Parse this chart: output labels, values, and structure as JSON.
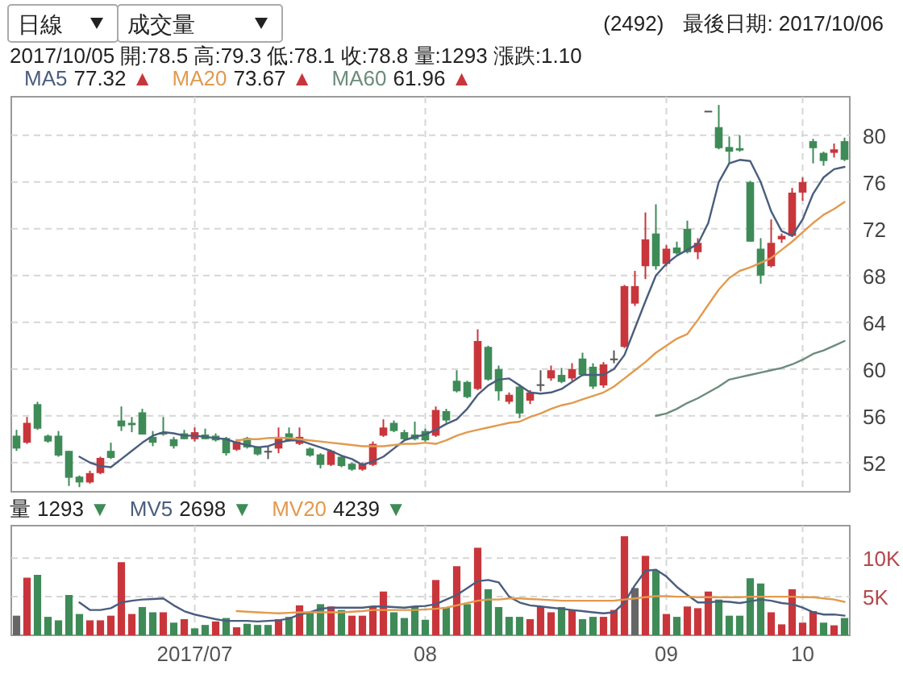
{
  "chart_data": [
    {
      "type": "candlestick",
      "title": "(2492)",
      "subtitle": "最後日期: 2017/10/06",
      "annotations": [
        "日線",
        "成交量",
        "2017/10/05 開:78.5 高:79.3 低:78.1 收:78.8 量:1293 漲跌:1.10",
        "77.32 ▲",
        "73.67 ▲",
        "61.96 ▲"
      ],
      "categories": [
        null,
        null,
        null,
        null,
        null,
        null,
        null,
        null,
        null,
        null,
        null,
        null,
        null,
        null,
        null,
        null,
        null,
        "2017/07",
        null,
        null,
        null,
        null,
        null,
        null,
        null,
        null,
        null,
        null,
        null,
        null,
        null,
        null,
        null,
        null,
        null,
        null,
        null,
        null,
        null,
        "08",
        null,
        null,
        null,
        null,
        null,
        null,
        null,
        null,
        null,
        null,
        null,
        null,
        null,
        null,
        null,
        null,
        null,
        null,
        null,
        null,
        null,
        null,
        "09",
        null,
        null,
        null,
        null,
        null,
        null,
        null,
        null,
        null,
        null,
        null,
        null,
        "10",
        null,
        null,
        null,
        null
      ],
      "ohlc": [
        [
          54.3,
          54.8,
          53.0,
          53.2
        ],
        [
          53.7,
          55.9,
          53.6,
          55.4
        ],
        [
          57.0,
          57.2,
          54.8,
          54.9
        ],
        [
          54.3,
          54.4,
          53.7,
          53.8
        ],
        [
          54.3,
          54.7,
          52.5,
          52.6
        ],
        [
          53.0,
          53.0,
          50.0,
          50.7
        ],
        [
          50.8,
          50.9,
          49.9,
          50.3
        ],
        [
          50.3,
          51.3,
          50.2,
          51.1
        ],
        [
          51.1,
          52.5,
          51.0,
          52.4
        ],
        [
          53.0,
          53.7,
          52.3,
          52.4
        ],
        [
          55.6,
          56.8,
          54.7,
          55.1
        ],
        [
          55.4,
          55.9,
          54.6,
          55.2
        ],
        [
          56.3,
          56.6,
          54.4,
          54.4
        ],
        [
          54.2,
          54.7,
          53.4,
          53.7
        ],
        [
          54.6,
          55.9,
          54.3,
          54.4
        ],
        [
          54.0,
          54.2,
          53.2,
          53.4
        ],
        [
          54.5,
          54.8,
          54.0,
          54.0
        ],
        [
          54.0,
          55.0,
          53.8,
          54.6
        ],
        [
          54.4,
          54.9,
          54.0,
          54.0
        ],
        [
          54.3,
          54.5,
          53.8,
          53.9
        ],
        [
          54.1,
          54.2,
          52.6,
          52.8
        ],
        [
          53.1,
          54.0,
          53.0,
          53.8
        ],
        [
          54.1,
          54.2,
          53.2,
          53.3
        ],
        [
          53.3,
          53.4,
          52.6,
          52.7
        ],
        [
          53.0,
          53.4,
          52.3,
          53.0
        ],
        [
          53.2,
          55.0,
          52.8,
          54.2
        ],
        [
          54.5,
          55.0,
          53.8,
          53.9
        ],
        [
          53.6,
          55.0,
          53.5,
          54.2
        ],
        [
          53.2,
          53.3,
          52.5,
          52.6
        ],
        [
          52.7,
          52.8,
          51.5,
          51.8
        ],
        [
          51.8,
          53.1,
          51.7,
          53.0
        ],
        [
          52.5,
          52.6,
          51.6,
          51.7
        ],
        [
          51.9,
          52.0,
          51.3,
          51.4
        ],
        [
          51.4,
          52.0,
          51.3,
          51.9
        ],
        [
          51.8,
          53.8,
          51.7,
          53.6
        ],
        [
          54.3,
          55.7,
          54.2,
          55.0
        ],
        [
          55.4,
          55.6,
          54.6,
          54.7
        ],
        [
          54.6,
          54.8,
          53.9,
          54.0
        ],
        [
          54.4,
          55.5,
          53.9,
          54.0
        ],
        [
          54.7,
          54.9,
          53.8,
          53.9
        ],
        [
          54.3,
          56.8,
          54.2,
          56.5
        ],
        [
          56.4,
          56.6,
          55.4,
          55.6
        ],
        [
          59.0,
          59.9,
          58.0,
          58.1
        ],
        [
          58.9,
          59.0,
          57.5,
          57.6
        ],
        [
          58.3,
          63.4,
          58.2,
          62.4
        ],
        [
          61.9,
          62.0,
          59.0,
          59.1
        ],
        [
          60.0,
          60.3,
          57.3,
          58.1
        ],
        [
          57.2,
          58.0,
          57.0,
          57.8
        ],
        [
          58.5,
          58.7,
          55.8,
          56.2
        ],
        [
          57.3,
          58.2,
          57.0,
          58.0
        ],
        [
          58.7,
          59.9,
          58.1,
          58.7
        ],
        [
          59.2,
          60.3,
          59.0,
          59.9
        ],
        [
          59.5,
          60.1,
          58.8,
          58.9
        ],
        [
          59.2,
          60.5,
          59.0,
          60.0
        ],
        [
          60.9,
          61.4,
          59.4,
          59.5
        ],
        [
          60.2,
          60.5,
          58.3,
          58.5
        ],
        [
          58.6,
          60.6,
          58.4,
          60.4
        ],
        [
          60.9,
          61.6,
          60.5,
          60.9
        ],
        [
          61.9,
          67.2,
          61.8,
          67.1
        ],
        [
          65.6,
          68.4,
          65.4,
          67.1
        ],
        [
          68.8,
          73.4,
          67.7,
          71.1
        ],
        [
          71.6,
          74.1,
          68.5,
          68.8
        ],
        [
          69.0,
          70.6,
          68.8,
          70.3
        ],
        [
          70.4,
          70.9,
          69.8,
          69.9
        ],
        [
          72.0,
          72.7,
          69.9,
          70.0
        ],
        [
          70.0,
          71.2,
          69.4,
          70.8
        ],
        [
          82.1,
          82.1,
          82.1,
          82.1
        ],
        [
          80.7,
          82.6,
          78.8,
          78.9
        ],
        [
          79.0,
          79.9,
          77.6,
          78.6
        ],
        [
          78.9,
          80.0,
          78.6,
          78.7
        ],
        [
          76.0,
          76.1,
          70.9,
          70.9
        ],
        [
          70.3,
          71.2,
          67.3,
          68.0
        ],
        [
          68.8,
          72.8,
          68.7,
          70.8
        ],
        [
          71.1,
          71.6,
          70.8,
          71.4
        ],
        [
          71.4,
          75.5,
          71.3,
          75.1
        ],
        [
          75.1,
          76.4,
          74.4,
          76.0
        ],
        [
          79.5,
          79.7,
          77.6,
          78.9
        ],
        [
          78.5,
          78.6,
          77.4,
          77.8
        ],
        [
          78.5,
          79.3,
          78.1,
          78.8
        ],
        [
          79.5,
          79.8,
          77.8,
          77.9
        ]
      ],
      "colors": [
        "#3e8b58",
        "#c8363b",
        "#3e8b58",
        "#3e8b58",
        "#3e8b58",
        "#3e8b58",
        "#3e8b58",
        "#c8363b",
        "#c8363b",
        "#3e8b58",
        "#3e8b58",
        "#3e8b58",
        "#3e8b58",
        "#3e8b58",
        "#3e8b58",
        "#3e8b58",
        "#3e8b58",
        "#c8363b",
        "#3e8b58",
        "#3e8b58",
        "#3e8b58",
        "#c8363b",
        "#3e8b58",
        "#3e8b58",
        "#555555",
        "#c8363b",
        "#3e8b58",
        "#c8363b",
        "#3e8b58",
        "#3e8b58",
        "#c8363b",
        "#3e8b58",
        "#3e8b58",
        "#c8363b",
        "#c8363b",
        "#c8363b",
        "#3e8b58",
        "#3e8b58",
        "#3e8b58",
        "#3e8b58",
        "#c8363b",
        "#3e8b58",
        "#3e8b58",
        "#3e8b58",
        "#c8363b",
        "#3e8b58",
        "#3e8b58",
        "#c8363b",
        "#3e8b58",
        "#c8363b",
        "#555555",
        "#c8363b",
        "#3e8b58",
        "#c8363b",
        "#3e8b58",
        "#3e8b58",
        "#c8363b",
        "#555555",
        "#c8363b",
        "#c8363b",
        "#c8363b",
        "#3e8b58",
        "#c8363b",
        "#3e8b58",
        "#3e8b58",
        "#c8363b",
        "#555555",
        "#3e8b58",
        "#3e8b58",
        "#3e8b58",
        "#3e8b58",
        "#3e8b58",
        "#c8363b",
        "#c8363b",
        "#c8363b",
        "#c8363b",
        "#3e8b58",
        "#3e8b58",
        "#c8363b",
        "#3e8b58"
      ],
      "series": [
        {
          "name": "MA5",
          "type": "line",
          "color": "#4a5d7e",
          "values": [
            null,
            null,
            null,
            null,
            null,
            null,
            52.5,
            52.0,
            51.7,
            51.6,
            52.3,
            53.0,
            53.7,
            54.3,
            54.6,
            54.5,
            54.3,
            54.3,
            54.2,
            54.1,
            54.0,
            53.7,
            53.5,
            53.3,
            53.4,
            53.7,
            53.9,
            53.9,
            53.6,
            53.3,
            53.0,
            52.6,
            52.3,
            51.8,
            52.1,
            52.5,
            53.2,
            53.9,
            54.2,
            54.4,
            54.8,
            55.3,
            55.7,
            56.6,
            57.8,
            58.6,
            59.1,
            59.2,
            58.6,
            58.0,
            57.9,
            58.0,
            58.3,
            58.9,
            59.5,
            59.5,
            59.5,
            60.0,
            61.2,
            63.5,
            65.8,
            68.0,
            69.0,
            69.7,
            70.2,
            70.7,
            72.5,
            76.0,
            77.6,
            77.9,
            77.8,
            76.0,
            73.5,
            71.8,
            71.4,
            72.8,
            75.0,
            76.4,
            77.1,
            77.3
          ]
        },
        {
          "name": "MA20",
          "type": "line",
          "color": "#e29a4e",
          "values": [
            null,
            null,
            null,
            null,
            null,
            null,
            null,
            null,
            null,
            null,
            null,
            null,
            null,
            null,
            null,
            null,
            null,
            null,
            null,
            null,
            null,
            53.9,
            54.0,
            54.0,
            54.1,
            54.1,
            54.1,
            54.0,
            53.9,
            53.8,
            53.7,
            53.6,
            53.5,
            53.4,
            53.4,
            53.4,
            53.5,
            53.6,
            53.6,
            53.7,
            53.6,
            53.9,
            54.3,
            54.6,
            54.8,
            55.0,
            55.2,
            55.4,
            55.5,
            55.9,
            56.2,
            56.6,
            56.9,
            57.1,
            57.4,
            57.7,
            58.0,
            58.5,
            59.2,
            59.9,
            60.6,
            61.4,
            62.0,
            62.6,
            63.0,
            64.2,
            65.5,
            66.8,
            67.8,
            68.4,
            68.7,
            69.1,
            69.5,
            70.2,
            70.9,
            71.7,
            72.5,
            73.2,
            73.7,
            74.3
          ]
        },
        {
          "name": "MA60",
          "type": "line",
          "color": "#6b8c7c",
          "values": [
            null,
            null,
            null,
            null,
            null,
            null,
            null,
            null,
            null,
            null,
            null,
            null,
            null,
            null,
            null,
            null,
            null,
            null,
            null,
            null,
            null,
            null,
            null,
            null,
            null,
            null,
            null,
            null,
            null,
            null,
            null,
            null,
            null,
            null,
            null,
            null,
            null,
            null,
            null,
            null,
            null,
            null,
            null,
            null,
            null,
            null,
            null,
            null,
            null,
            null,
            null,
            null,
            null,
            null,
            null,
            null,
            null,
            null,
            null,
            null,
            null,
            56.0,
            56.2,
            56.6,
            57.1,
            57.5,
            58.0,
            58.5,
            59.1,
            59.3,
            59.5,
            59.7,
            59.9,
            60.1,
            60.4,
            60.8,
            61.3,
            61.6,
            62.0,
            62.4
          ]
        }
      ],
      "ylim": [
        49.5,
        83.3
      ],
      "yticks": [
        52,
        56,
        60,
        64,
        68,
        72,
        76,
        80
      ],
      "grid": true,
      "legend": "top left",
      "tick_labels": "y"
    },
    {
      "type": "bar",
      "annotations": [
        "1293 ▼",
        "2698 ▼",
        "4239 ▼"
      ],
      "categories": [
        null,
        null,
        null,
        null,
        null,
        null,
        null,
        null,
        null,
        null,
        null,
        null,
        null,
        null,
        null,
        null,
        null,
        "2017/07",
        null,
        null,
        null,
        null,
        null,
        null,
        null,
        null,
        null,
        null,
        null,
        null,
        null,
        null,
        null,
        null,
        null,
        null,
        null,
        null,
        null,
        "08",
        null,
        null,
        null,
        null,
        null,
        null,
        null,
        null,
        null,
        null,
        null,
        null,
        null,
        null,
        null,
        null,
        null,
        null,
        null,
        null,
        null,
        null,
        "09",
        null,
        null,
        null,
        null,
        null,
        null,
        null,
        null,
        null,
        null,
        null,
        null,
        "10",
        null,
        null,
        null,
        null
      ],
      "series": [
        {
          "name": "量",
          "type": "bar",
          "colors": [
            "#666666",
            "#c8363b",
            "#3e8b58",
            "#3e8b58",
            "#3e8b58",
            "#3e8b58",
            "#3e8b58",
            "#c8363b",
            "#c8363b",
            "#c8363b",
            "#c8363b",
            "#c8363b",
            "#3e8b58",
            "#3e8b58",
            "#c8363b",
            "#3e8b58",
            "#c8363b",
            "#3e8b58",
            "#3e8b58",
            "#c8363b",
            "#3e8b58",
            "#c8363b",
            "#3e8b58",
            "#3e8b58",
            "#3e8b58",
            "#c8363b",
            "#3e8b58",
            "#c8363b",
            "#3e8b58",
            "#3e8b58",
            "#c8363b",
            "#3e8b58",
            "#c8363b",
            "#c8363b",
            "#c8363b",
            "#c8363b",
            "#3e8b58",
            "#3e8b58",
            "#3e8b58",
            "#3e8b58",
            "#c8363b",
            "#3e8b58",
            "#c8363b",
            "#3e8b58",
            "#c8363b",
            "#3e8b58",
            "#3e8b58",
            "#3e8b58",
            "#3e8b58",
            "#c8363b",
            "#c8363b",
            "#c8363b",
            "#3e8b58",
            "#c8363b",
            "#3e8b58",
            "#3e8b58",
            "#c8363b",
            "#c8363b",
            "#c8363b",
            "#666666",
            "#c8363b",
            "#3e8b58",
            "#c8363b",
            "#3e8b58",
            "#c8363b",
            "#c8363b",
            "#c8363b",
            "#3e8b58",
            "#3e8b58",
            "#3e8b58",
            "#3e8b58",
            "#3e8b58",
            "#c8363b",
            "#c8363b",
            "#c8363b",
            "#c8363b",
            "#c8363b",
            "#3e8b58",
            "#c8363b",
            "#3e8b58"
          ],
          "values": [
            2540,
            7460,
            7830,
            2390,
            1940,
            5220,
            2760,
            1940,
            1940,
            2540,
            9470,
            2760,
            3660,
            2980,
            2980,
            1640,
            2090,
            900,
            1340,
            1790,
            2240,
            1040,
            1490,
            1340,
            1340,
            2090,
            2390,
            3880,
            2980,
            4030,
            3730,
            3280,
            2540,
            2540,
            3730,
            5670,
            2980,
            2240,
            3730,
            2010,
            7160,
            3580,
            8950,
            4030,
            11340,
            5970,
            3660,
            2390,
            2390,
            2090,
            3730,
            2980,
            3660,
            3280,
            2090,
            2390,
            2390,
            3280,
            12830,
            6120,
            10290,
            8360,
            2760,
            2390,
            3730,
            3510,
            5670,
            4630,
            2540,
            2540,
            7390,
            6710,
            2980,
            1420,
            5970,
            1640,
            3130,
            1640,
            1293,
            2240
          ]
        },
        {
          "name": "MV5",
          "type": "line",
          "color": "#4a5d7e",
          "values": [
            null,
            null,
            null,
            null,
            null,
            null,
            4250,
            3280,
            3280,
            3510,
            4250,
            4480,
            4630,
            4700,
            4770,
            3880,
            3130,
            2690,
            2390,
            2090,
            1870,
            1870,
            1870,
            1790,
            1870,
            1940,
            2160,
            2690,
            2980,
            3430,
            3580,
            3580,
            3580,
            3580,
            3730,
            3730,
            3660,
            3580,
            3730,
            3800,
            4030,
            4630,
            5220,
            6120,
            7010,
            7160,
            6860,
            5000,
            4250,
            3880,
            3730,
            3580,
            3430,
            3280,
            3130,
            2980,
            2840,
            2980,
            4250,
            6490,
            8360,
            8500,
            7610,
            6270,
            5220,
            4250,
            4250,
            4400,
            4330,
            4180,
            4400,
            4630,
            4480,
            4180,
            4030,
            3580,
            2980,
            2690,
            2698,
            2540
          ]
        },
        {
          "name": "MV20",
          "type": "line",
          "color": "#e29a4e",
          "values": [
            null,
            null,
            null,
            null,
            null,
            null,
            null,
            null,
            null,
            null,
            null,
            null,
            null,
            null,
            null,
            null,
            null,
            null,
            null,
            null,
            null,
            3130,
            3060,
            2980,
            2910,
            2840,
            2910,
            2980,
            2980,
            2980,
            2980,
            2980,
            3060,
            3130,
            3280,
            3280,
            3280,
            3280,
            3280,
            3350,
            3430,
            3580,
            3880,
            4180,
            4480,
            4630,
            4630,
            4780,
            4780,
            4700,
            4630,
            4550,
            4480,
            4480,
            4480,
            4480,
            4480,
            4480,
            4630,
            4780,
            4930,
            5070,
            5070,
            5000,
            5000,
            4930,
            4930,
            4930,
            4930,
            4930,
            5000,
            5000,
            5000,
            5000,
            5000,
            4930,
            4930,
            4780,
            4630,
            4330
          ]
        }
      ],
      "ylim": [
        0,
        14200
      ],
      "yticks": [
        {
          "value": 5000,
          "label": "5K"
        },
        {
          "value": 10000,
          "label": "10K"
        }
      ],
      "grid": true,
      "legend": "top left"
    }
  ]
}
